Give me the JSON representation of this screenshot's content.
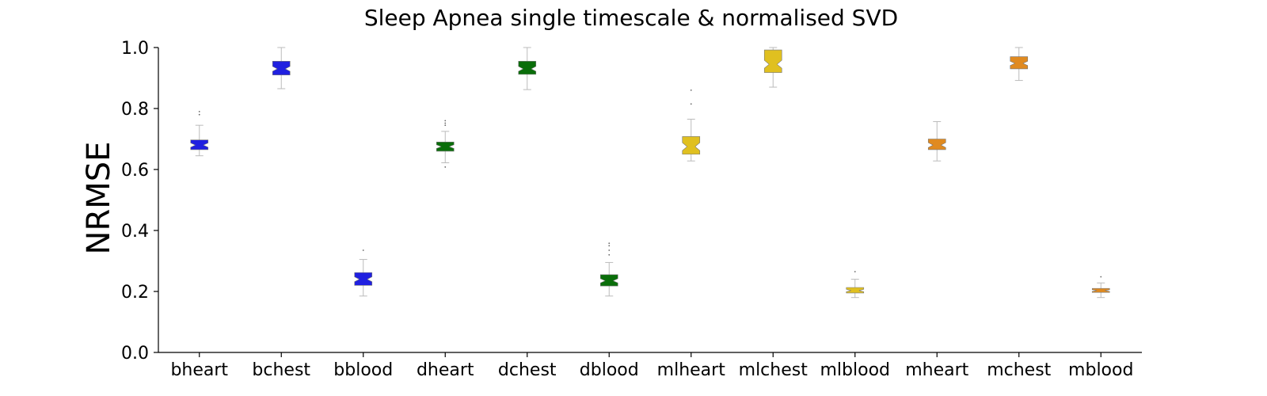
{
  "chart_data": {
    "type": "boxplot",
    "title": "Sleep Apnea single timescale & normalised SVD",
    "xlabel": "",
    "ylabel": "NRMSE",
    "ylim": [
      0,
      1
    ],
    "yticks": [
      0.0,
      0.2,
      0.4,
      0.6,
      0.8,
      1.0
    ],
    "ytick_labels": [
      "0.0",
      "0.2",
      "0.4",
      "0.6",
      "0.8",
      "1.0"
    ],
    "grid": false,
    "notched": true,
    "categories": [
      "bheart",
      "bchest",
      "bblood",
      "dheart",
      "dchest",
      "dblood",
      "mlheart",
      "mlchest",
      "mlblood",
      "mheart",
      "mchest",
      "mblood"
    ],
    "boxes": [
      {
        "category": "bheart",
        "color": "#2020e0",
        "whislo": 0.645,
        "q1": 0.665,
        "med": 0.68,
        "q3": 0.697,
        "whishi": 0.745,
        "notch": [
          0.673,
          0.687
        ],
        "fliers": [
          0.78,
          0.79
        ]
      },
      {
        "category": "bchest",
        "color": "#2020e0",
        "whislo": 0.865,
        "q1": 0.91,
        "med": 0.93,
        "q3": 0.955,
        "whishi": 1.0,
        "notch": [
          0.922,
          0.938
        ],
        "fliers": []
      },
      {
        "category": "bblood",
        "color": "#2020e0",
        "whislo": 0.185,
        "q1": 0.22,
        "med": 0.24,
        "q3": 0.262,
        "whishi": 0.305,
        "notch": [
          0.232,
          0.248
        ],
        "fliers": [
          0.335
        ]
      },
      {
        "category": "dheart",
        "color": "#0a6e0a",
        "whislo": 0.622,
        "q1": 0.66,
        "med": 0.675,
        "q3": 0.69,
        "whishi": 0.725,
        "notch": [
          0.669,
          0.681
        ],
        "fliers": [
          0.608,
          0.745,
          0.752,
          0.76
        ]
      },
      {
        "category": "dchest",
        "color": "#0a6e0a",
        "whislo": 0.862,
        "q1": 0.912,
        "med": 0.93,
        "q3": 0.955,
        "whishi": 1.0,
        "notch": [
          0.922,
          0.938
        ],
        "fliers": []
      },
      {
        "category": "dblood",
        "color": "#0a6e0a",
        "whislo": 0.185,
        "q1": 0.218,
        "med": 0.235,
        "q3": 0.255,
        "whishi": 0.295,
        "notch": [
          0.228,
          0.242
        ],
        "fliers": [
          0.32,
          0.335,
          0.35,
          0.358
        ]
      },
      {
        "category": "mlheart",
        "color": "#e0c020",
        "whislo": 0.628,
        "q1": 0.65,
        "med": 0.675,
        "q3": 0.708,
        "whishi": 0.765,
        "notch": [
          0.662,
          0.688
        ],
        "fliers": [
          0.815,
          0.86
        ]
      },
      {
        "category": "mlchest",
        "color": "#e0c020",
        "whislo": 0.87,
        "q1": 0.918,
        "med": 0.945,
        "q3": 0.992,
        "whishi": 1.0,
        "notch": [
          0.932,
          0.958
        ],
        "fliers": []
      },
      {
        "category": "mlblood",
        "color": "#e0c020",
        "whislo": 0.18,
        "q1": 0.195,
        "med": 0.203,
        "q3": 0.213,
        "whishi": 0.24,
        "notch": [
          0.199,
          0.207
        ],
        "fliers": [
          0.265
        ]
      },
      {
        "category": "mheart",
        "color": "#e08a20",
        "whislo": 0.628,
        "q1": 0.665,
        "med": 0.68,
        "q3": 0.7,
        "whishi": 0.757,
        "notch": [
          0.672,
          0.688
        ],
        "fliers": []
      },
      {
        "category": "mchest",
        "color": "#e08a20",
        "whislo": 0.892,
        "q1": 0.93,
        "med": 0.948,
        "q3": 0.97,
        "whishi": 1.0,
        "notch": [
          0.941,
          0.955
        ],
        "fliers": []
      },
      {
        "category": "mblood",
        "color": "#e08a20",
        "whislo": 0.18,
        "q1": 0.197,
        "med": 0.203,
        "q3": 0.21,
        "whishi": 0.228,
        "notch": [
          0.2,
          0.206
        ],
        "fliers": [
          0.248
        ]
      }
    ],
    "whisker_color": "#bbbbbb",
    "box_edge_color": "#777777"
  }
}
